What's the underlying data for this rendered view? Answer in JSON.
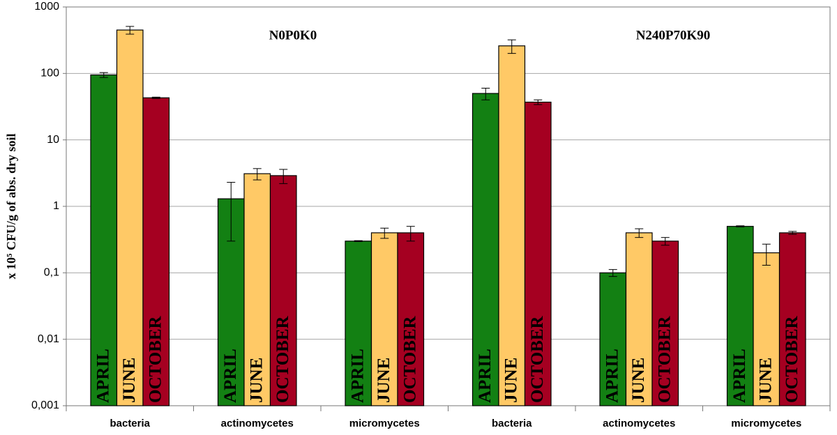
{
  "chart_data": {
    "type": "bar",
    "log_scale": true,
    "grid": true,
    "ylabel": "x 10⁵ CFU/g of abs. dry soil",
    "annotations": [
      "N0P0K0",
      "N240P70K90"
    ],
    "categories": [
      "bacteria",
      "actinomycetes",
      "micromycetes",
      "bacteria",
      "actinomycetes",
      "micromycetes"
    ],
    "series": [
      {
        "name": "APRIL",
        "color": "#138013",
        "values": [
          95,
          1.3,
          0.3,
          50,
          0.1,
          0.5
        ],
        "errors": [
          8,
          1.0,
          0.005,
          10,
          0.012,
          0.01
        ]
      },
      {
        "name": "JUNE",
        "color": "#ffc966",
        "values": [
          450,
          3.1,
          0.4,
          260,
          0.4,
          0.2
        ],
        "errors": [
          60,
          0.6,
          0.07,
          60,
          0.06,
          0.07
        ]
      },
      {
        "name": "OCTOBER",
        "color": "#a50021",
        "values": [
          43,
          2.9,
          0.4,
          37,
          0.3,
          0.4
        ],
        "errors": [
          1,
          0.7,
          0.1,
          3,
          0.04,
          0.02
        ]
      }
    ],
    "ylim": [
      0.001,
      1000
    ],
    "yticks": [
      {
        "value": 0.001,
        "label": "0,001"
      },
      {
        "value": 0.01,
        "label": "0,01"
      },
      {
        "value": 0.1,
        "label": "0,1"
      },
      1,
      10,
      100,
      1000
    ]
  }
}
